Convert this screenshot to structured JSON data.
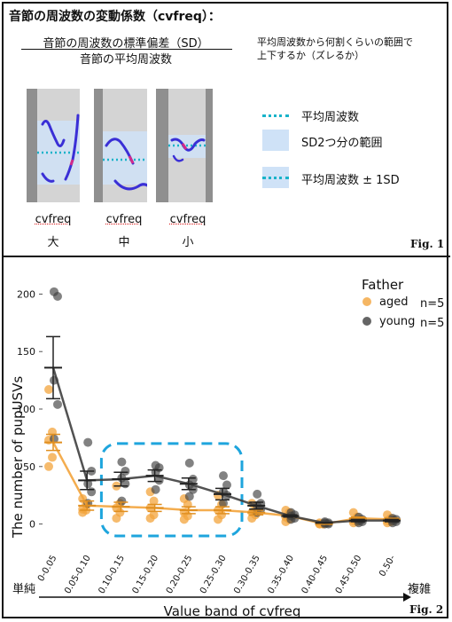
{
  "fig1": {
    "title": "音節の周波数の変動係数（cvfreq）：",
    "formula_numerator": "音節の周波数の標準偏差（SD）",
    "formula_denominator": "音節の平均周波数",
    "meaning": "平均周波数から何割くらいの範囲で\n上下するか（ズレるか）",
    "legend": [
      {
        "label": "平均周波数"
      },
      {
        "label": "SD2つ分の範囲"
      },
      {
        "label": "平均周波数 ± 1SD"
      }
    ],
    "examples": [
      {
        "label": "cvfreq",
        "level": "大"
      },
      {
        "label": "cvfreq",
        "level": "中"
      },
      {
        "label": "cvfreq",
        "level": "小"
      }
    ],
    "fig_label": "Fig. 1"
  },
  "fig2": {
    "fig_label": "Fig. 2",
    "left_end": "単純",
    "right_end": "複雑"
  },
  "colors": {
    "aged": "#f3a43c",
    "young": "#3f3f3f",
    "highlight": "#1ea5dd",
    "mean_line": "#19b3c9",
    "band": "#cfe2f7"
  },
  "chart_data": {
    "type": "scatter",
    "xlabel": "Value band of cvfreq",
    "ylabel": "The number of pupUSVs",
    "legend_title": "Father",
    "legend_position": "top-right",
    "categories": [
      "0-0.05",
      "0.05-0.10",
      "0.10-0.15",
      "0.15-0.20",
      "0.20-0.25",
      "0.25-0.30",
      "0.30-0.35",
      "0.35-0.40",
      "0.40-0.45",
      "0.45-0.50",
      "0.50-"
    ],
    "yticks": [
      0,
      50,
      100,
      150,
      200
    ],
    "ylim": [
      -15,
      215
    ],
    "highlight_range": [
      "0.10-0.15",
      "0.25-0.30"
    ],
    "series": [
      {
        "name": "aged",
        "n_label": "n=5",
        "mean": [
          71,
          16,
          15,
          14,
          12,
          12,
          10,
          7,
          0,
          5,
          4
        ],
        "sem": [
          7,
          4,
          4,
          3,
          3,
          3,
          2,
          1,
          0,
          1,
          1
        ],
        "points": [
          [
            117,
            80,
            73,
            58,
            50
          ],
          [
            22,
            17,
            13,
            12,
            10
          ],
          [
            33,
            18,
            14,
            10,
            5
          ],
          [
            28,
            20,
            14,
            8,
            5
          ],
          [
            22,
            17,
            10,
            7,
            4
          ],
          [
            25,
            17,
            12,
            8,
            4
          ],
          [
            18,
            12,
            10,
            8,
            5
          ],
          [
            12,
            10,
            6,
            4,
            2
          ],
          [
            1,
            0,
            0,
            0,
            0
          ],
          [
            10,
            6,
            3,
            2,
            1
          ],
          [
            8,
            5,
            3,
            2,
            1
          ]
        ]
      },
      {
        "name": "young",
        "n_label": "n=5",
        "mean": [
          136,
          38,
          39,
          42,
          35,
          26,
          16,
          7,
          1,
          3,
          3
        ],
        "sem": [
          27,
          8,
          6,
          5,
          5,
          5,
          3,
          1,
          0,
          1,
          1
        ],
        "points": [
          [
            202,
            198,
            125,
            104,
            74
          ],
          [
            71,
            46,
            35,
            28,
            18
          ],
          [
            54,
            46,
            40,
            35,
            20
          ],
          [
            51,
            49,
            45,
            38,
            30
          ],
          [
            53,
            39,
            34,
            30,
            24
          ],
          [
            42,
            34,
            28,
            25,
            18
          ],
          [
            26,
            18,
            16,
            13,
            10
          ],
          [
            10,
            8,
            7,
            5,
            4
          ],
          [
            2,
            1,
            1,
            0,
            0
          ],
          [
            6,
            4,
            3,
            2,
            1
          ],
          [
            5,
            4,
            3,
            2,
            1
          ]
        ]
      }
    ]
  }
}
